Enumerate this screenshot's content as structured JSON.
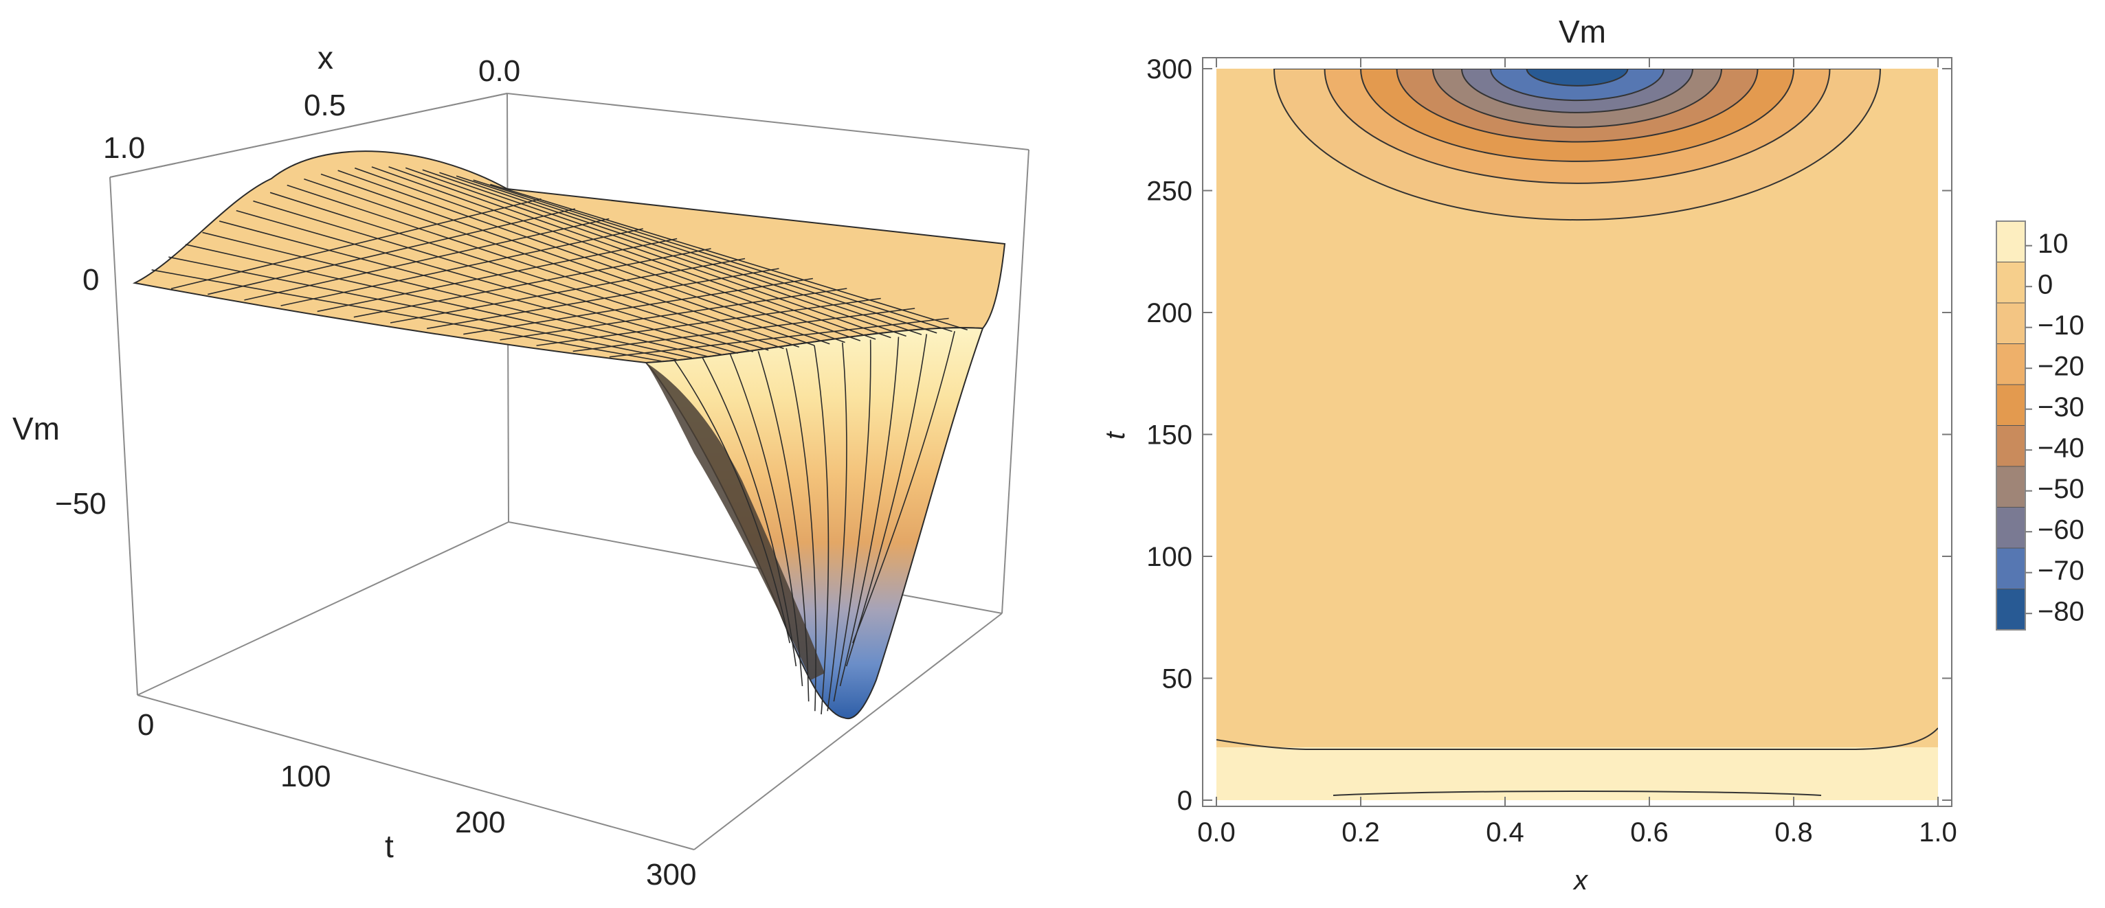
{
  "chart_data": [
    {
      "type": "surface",
      "xlabel": "x",
      "ylabel": "t",
      "zlabel": "Vm",
      "x_ticks": [
        "1.0",
        "0.5",
        "0.0"
      ],
      "t_ticks": [
        "0",
        "100",
        "200",
        "300"
      ],
      "z_ticks": [
        "0",
        "−50"
      ],
      "xlim": [
        0,
        1
      ],
      "tlim": [
        0,
        300
      ],
      "zlim": [
        -90,
        20
      ],
      "colormap": [
        "#2f5fa8",
        "#6b8ec8",
        "#a6a3b8",
        "#e3a766",
        "#f2c27a",
        "#fbe3a0",
        "#fdf3c4"
      ]
    },
    {
      "type": "contour",
      "title": "Vm",
      "xlabel": "x",
      "ylabel": "t",
      "xlim": [
        0,
        1
      ],
      "ylim": [
        0,
        300
      ],
      "x_ticks": [
        "0.0",
        "0.2",
        "0.4",
        "0.6",
        "0.8",
        "1.0"
      ],
      "y_ticks": [
        "0",
        "50",
        "100",
        "150",
        "200",
        "250",
        "300"
      ],
      "legend": {
        "placement": "right",
        "levels": [
          "10",
          "0",
          "−10",
          "−20",
          "−30",
          "−40",
          "−50",
          "−60",
          "−70",
          "−80"
        ],
        "colors": [
          "#fdeec0",
          "#f6cf8c",
          "#f3c583",
          "#eeb06a",
          "#e39a4f",
          "#c98b5c",
          "#9f8577",
          "#7a7a93",
          "#5677b2",
          "#285a94"
        ]
      },
      "contour_rings": {
        "center_x": 0.5,
        "levels": [
          -10,
          -20,
          -30,
          -40,
          -50,
          -60,
          -70,
          -80
        ],
        "half_widths": [
          0.42,
          0.35,
          0.3,
          0.25,
          0.2,
          0.16,
          0.12,
          0.07
        ],
        "min_t": [
          238,
          253,
          262,
          270,
          276,
          282,
          287,
          293
        ]
      }
    }
  ]
}
